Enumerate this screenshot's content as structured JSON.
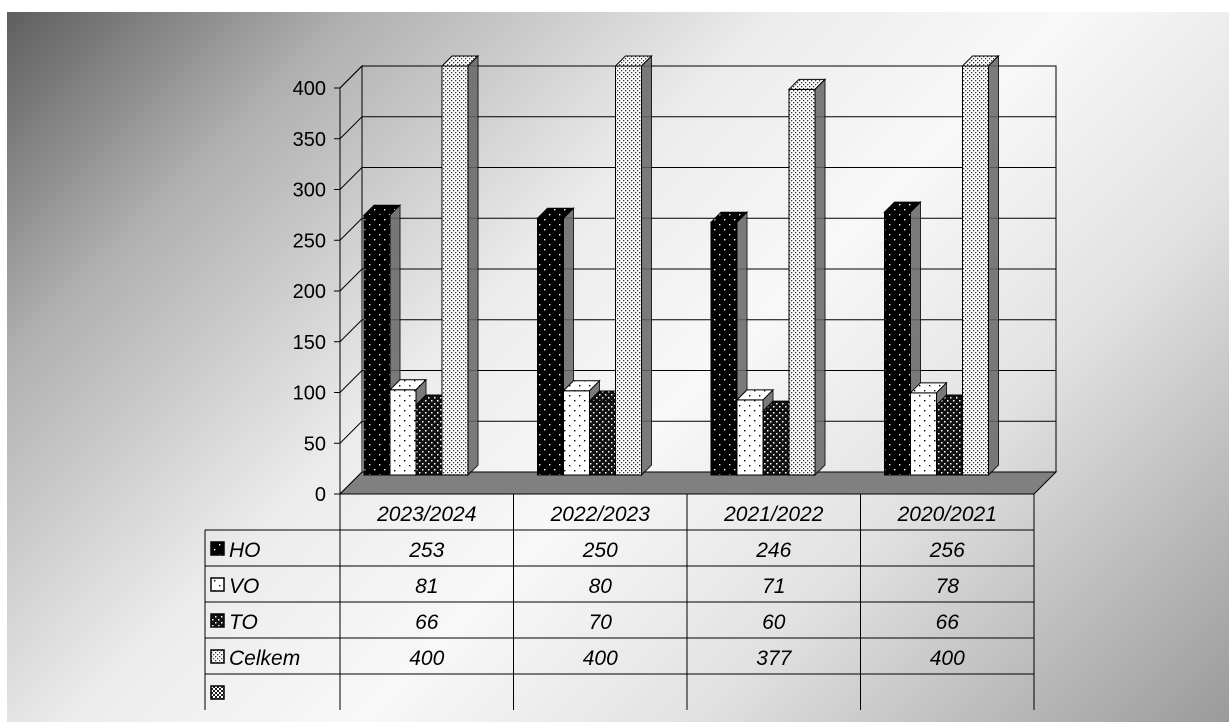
{
  "chart_data": {
    "type": "bar",
    "categories": [
      "2023/2024",
      "2022/2023",
      "2021/2022",
      "2020/2021"
    ],
    "series": [
      {
        "name": "HO",
        "values": [
          253,
          250,
          246,
          256
        ],
        "pattern": "black"
      },
      {
        "name": "VO",
        "values": [
          81,
          80,
          71,
          78
        ],
        "pattern": "white"
      },
      {
        "name": "TO",
        "values": [
          66,
          70,
          60,
          66
        ],
        "pattern": "dark"
      },
      {
        "name": "Celkem",
        "values": [
          400,
          400,
          377,
          400
        ],
        "pattern": "light"
      },
      {
        "name": "",
        "values": [
          null,
          null,
          null,
          null
        ],
        "pattern": "check"
      }
    ],
    "ylim": [
      0,
      400
    ],
    "yticks": [
      0,
      50,
      100,
      150,
      200,
      250,
      300,
      350,
      400
    ],
    "title": "",
    "xlabel": "",
    "ylabel": "",
    "grid": true,
    "legend": "data-table",
    "colors": {
      "background_dark": "#5e5e5e",
      "background_light": "#f8f8f8",
      "floor": "#808080",
      "bar_dark": "#000000",
      "bar_light": "#ffffff"
    }
  }
}
